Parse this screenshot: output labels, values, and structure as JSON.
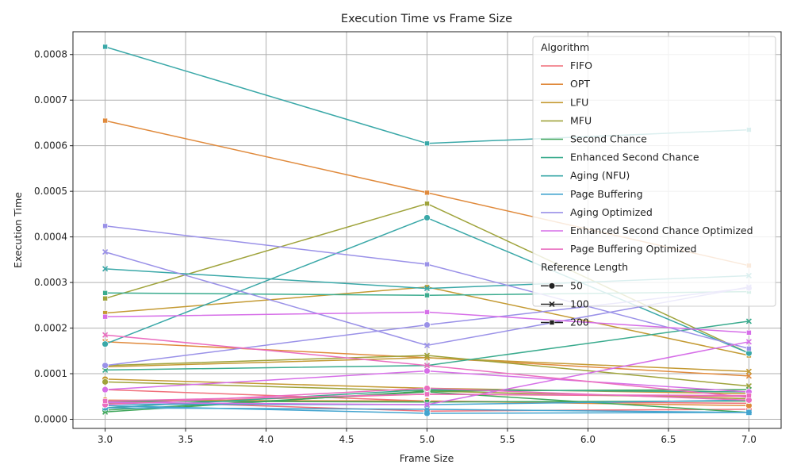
{
  "chart_data": {
    "type": "line",
    "title": "Execution Time vs Frame Size",
    "xlabel": "Frame Size",
    "ylabel": "Execution Time",
    "xlim": [
      2.8,
      7.2
    ],
    "ylim": [
      -2e-05,
      0.00085
    ],
    "x_ticks": [
      "3.0",
      "3.5",
      "4.0",
      "4.5",
      "5.0",
      "5.5",
      "6.0",
      "6.5",
      "7.0"
    ],
    "y_ticks": [
      "0.0000",
      "0.0001",
      "0.0002",
      "0.0003",
      "0.0004",
      "0.0005",
      "0.0006",
      "0.0007",
      "0.0008"
    ],
    "grid": true,
    "legend_position": "top-right",
    "legend_title_hue": "Algorithm",
    "legend_title_style": "Reference Length",
    "reference_lengths": [
      {
        "label": "50",
        "marker": "circle"
      },
      {
        "label": "100",
        "marker": "x"
      },
      {
        "label": "200",
        "marker": "square"
      }
    ],
    "x": [
      3,
      5,
      7
    ],
    "algorithms": [
      {
        "name": "FIFO",
        "color": "#f0707b",
        "values": {
          "50": [
            4e-05,
            1.8e-05,
            2.2e-05
          ],
          "100": [
            6.5e-05,
            4e-05,
            3.5e-05
          ],
          "200": [
            3.5e-05,
            5.5e-05,
            5e-05
          ]
        }
      },
      {
        "name": "OPT",
        "color": "#e08a3c",
        "values": {
          "50": [
            4.2e-05,
            4e-05,
            3e-05
          ],
          "100": [
            0.00017,
            0.000135,
            9.5e-05
          ],
          "200": [
            0.000655,
            0.000497,
            0.000337
          ]
        }
      },
      {
        "name": "LFU",
        "color": "#c49a33",
        "values": {
          "50": [
            8.8e-05,
            6.8e-05,
            5.6e-05
          ],
          "100": [
            0.000115,
            0.000135,
            0.000105
          ],
          "200": [
            0.000233,
            0.00029,
            0.00014
          ]
        }
      },
      {
        "name": "MFU",
        "color": "#9fa33b",
        "values": {
          "50": [
            8.2e-05,
            6.2e-05,
            4.5e-05
          ],
          "100": [
            0.000118,
            0.00014,
            7.3e-05
          ],
          "200": [
            0.000265,
            0.000473,
            0.000145
          ]
        }
      },
      {
        "name": "Second Chance",
        "color": "#3fa65a",
        "values": {
          "50": [
            2e-05,
            6e-05,
            1.5e-05
          ],
          "100": [
            1.6e-05,
            6.2e-05,
            6.5e-05
          ],
          "200": [
            4e-05,
            3.8e-05,
            4e-05
          ]
        }
      },
      {
        "name": "Enhanced Second Chance",
        "color": "#3aab8e",
        "values": {
          "50": [
            2.5e-05,
            6.5e-05,
            6e-05
          ],
          "100": [
            0.000108,
            0.000118,
            0.000215
          ],
          "200": [
            0.000277,
            0.000272,
            0.00028
          ]
        }
      },
      {
        "name": "Aging (NFU)",
        "color": "#3aa8a8",
        "values": {
          "50": [
            0.000165,
            0.000442,
            0.000145
          ],
          "100": [
            0.00033,
            0.000287,
            0.000315
          ],
          "200": [
            0.000817,
            0.000605,
            0.000635
          ]
        }
      },
      {
        "name": "Page Buffering",
        "color": "#43a4cf",
        "values": {
          "50": [
            3e-05,
            1.3e-05,
            1.5e-05
          ],
          "100": [
            2.5e-05,
            2.2e-05,
            1.5e-05
          ],
          "200": [
            3.3e-05,
            3.2e-05,
            4.2e-05
          ]
        }
      },
      {
        "name": "Aging Optimized",
        "color": "#9a91e8",
        "values": {
          "50": [
            0.000118,
            0.000207,
            0.000288
          ],
          "100": [
            0.000367,
            0.000162,
            0.00029
          ],
          "200": [
            0.000424,
            0.00034,
            0.000155
          ]
        }
      },
      {
        "name": "Enhanced Second Chance Optimized",
        "color": "#d66ee8",
        "values": {
          "50": [
            6.5e-05,
            0.000106,
            6e-05
          ],
          "100": [
            3.7e-05,
            3.2e-05,
            0.00017
          ],
          "200": [
            0.000225,
            0.000235,
            0.00019
          ]
        }
      },
      {
        "name": "Page Buffering Optimized",
        "color": "#ea6ec0",
        "values": {
          "50": [
            3.2e-05,
            6.8e-05,
            4.2e-05
          ],
          "100": [
            0.000185,
            0.000118,
            4.8e-05
          ],
          "200": [
            4e-05,
            5.5e-05,
            5.2e-05
          ]
        }
      }
    ]
  }
}
